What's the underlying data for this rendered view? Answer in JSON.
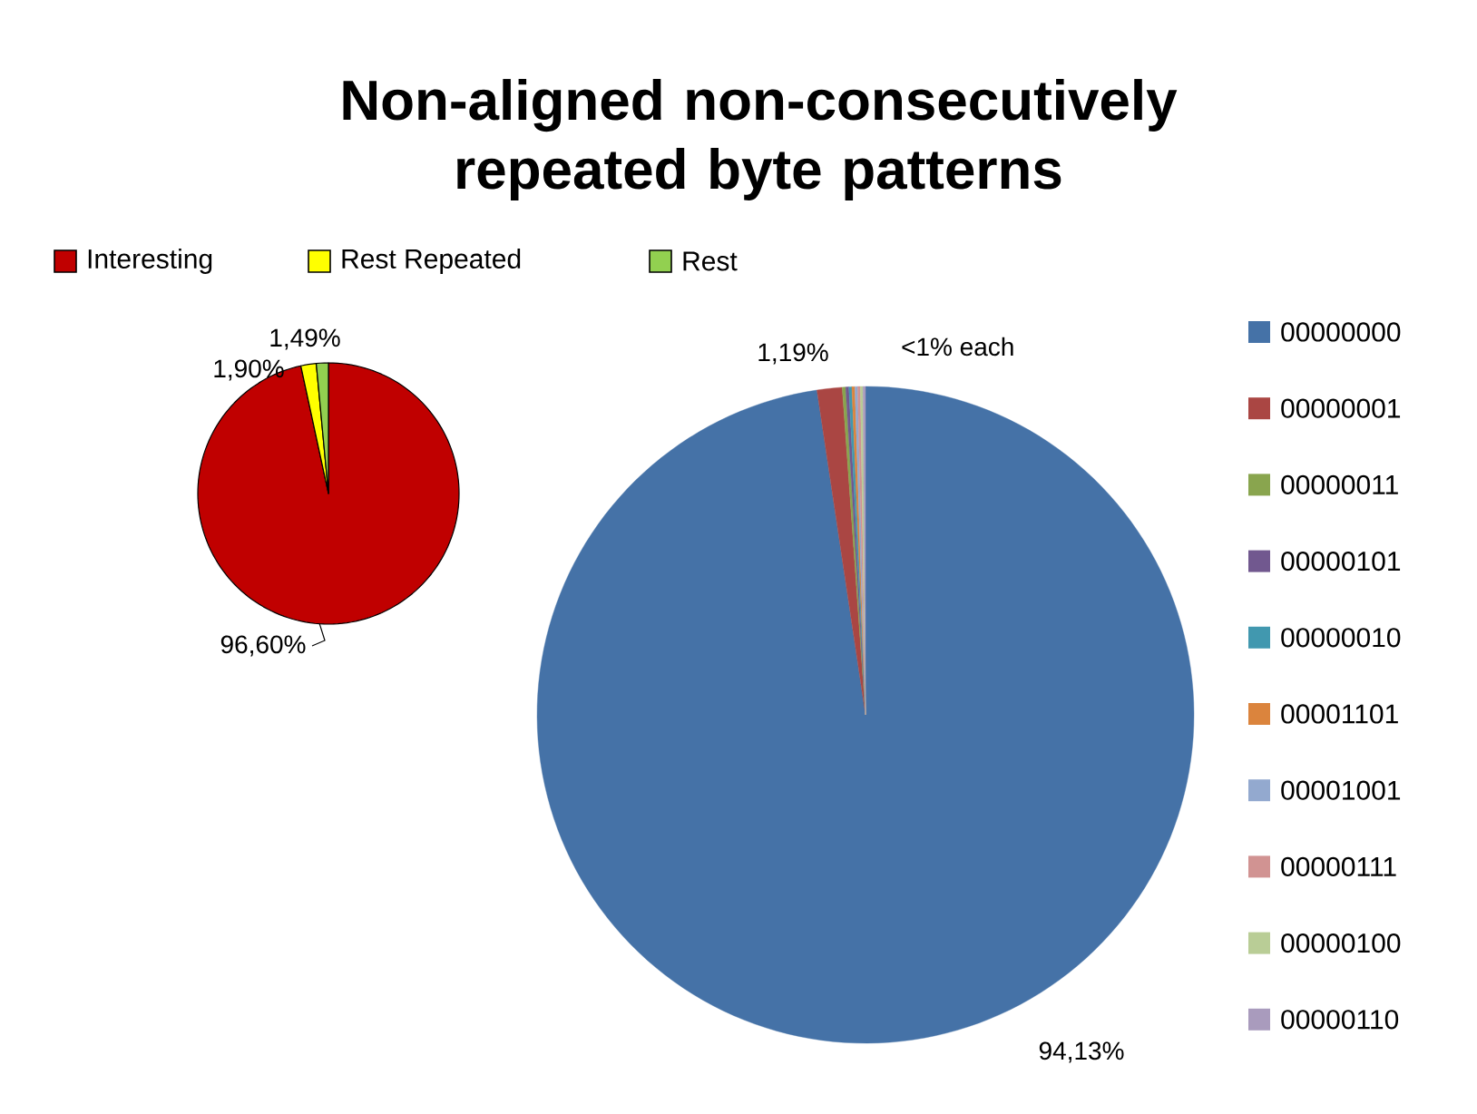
{
  "chart_data": [
    {
      "type": "pie",
      "title": "Non-aligned non-consecutively repeated byte patterns",
      "categories": [
        "Interesting",
        "Rest Repeated",
        "Rest"
      ],
      "values": [
        96.6,
        1.9,
        1.49
      ],
      "colors": [
        "#c00000",
        "#ffff00",
        "#92d050"
      ],
      "value_labels": [
        "96,60%",
        "1,90%",
        "1,49%"
      ],
      "legend": "top"
    },
    {
      "type": "pie",
      "categories": [
        "00000000",
        "00000001",
        "00000011",
        "00000101",
        "00000010",
        "00001101",
        "00001001",
        "00000111",
        "00000100",
        "00000110"
      ],
      "values": [
        94.13,
        1.19,
        0.16,
        0.15,
        0.14,
        0.14,
        0.13,
        0.13,
        0.12,
        0.12
      ],
      "colors": [
        "#4572a7",
        "#aa4643",
        "#89a54e",
        "#71588f",
        "#4198af",
        "#db843d",
        "#93a9cf",
        "#d19392",
        "#b9cd96",
        "#a99bbd"
      ],
      "value_labels": [
        "94,13%",
        "1,19%",
        null,
        null,
        null,
        null,
        null,
        null,
        null,
        null
      ],
      "annotations": [
        "<1% each"
      ],
      "legend": "right"
    }
  ]
}
